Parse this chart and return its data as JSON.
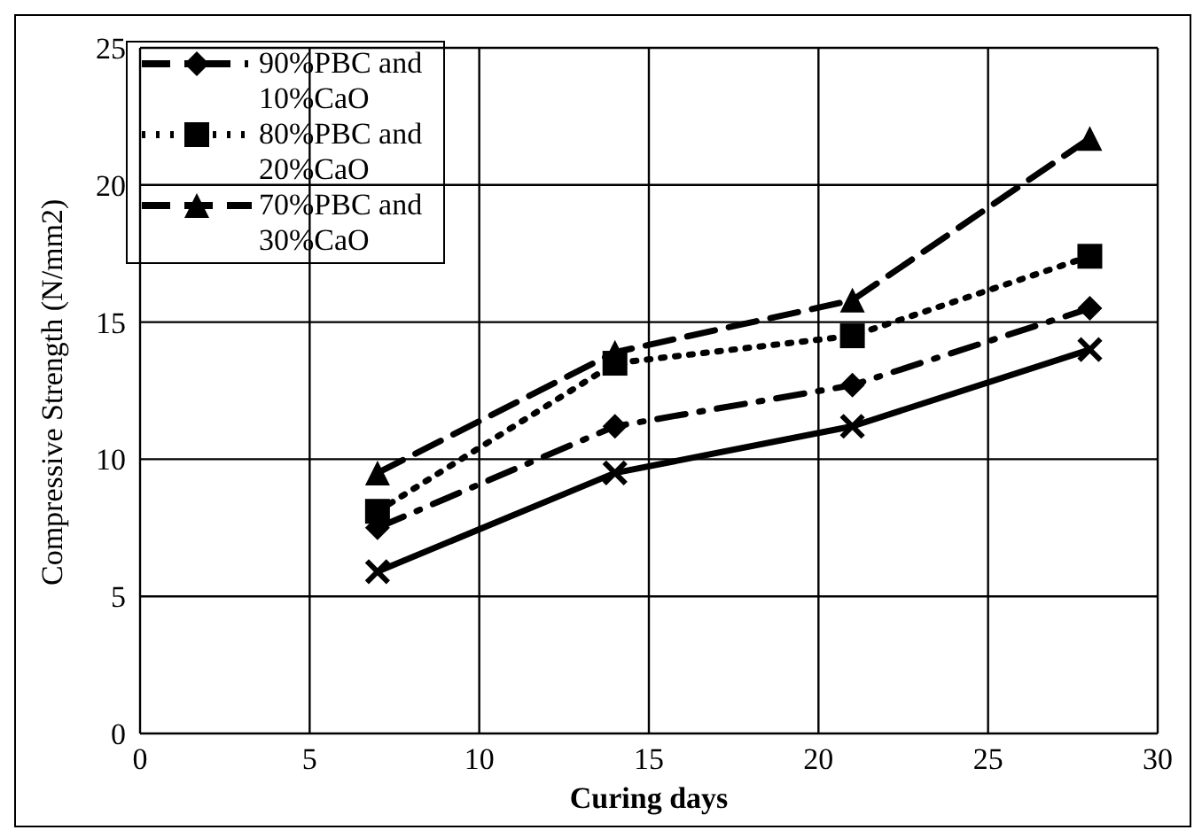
{
  "chart_data": {
    "type": "line",
    "xlabel": "Curing days",
    "ylabel": "Compressive Strength (N/mm2)",
    "x": [
      7,
      14,
      21,
      28
    ],
    "series": [
      {
        "name": "90%PBC and 10%CaO",
        "color": "#000000",
        "values": [
          7.5,
          11.2,
          12.7,
          15.5
        ],
        "marker": "diamond",
        "line_style": "dashdot"
      },
      {
        "name": "80%PBC and 20%CaO",
        "color": "#000000",
        "values": [
          8.1,
          13.5,
          14.5,
          17.4
        ],
        "marker": "square",
        "line_style": "dotted"
      },
      {
        "name": "70%PBC and 30%CaO",
        "color": "#000000",
        "values": [
          9.5,
          13.9,
          15.8,
          21.7
        ],
        "marker": "triangle",
        "line_style": "dashed"
      },
      {
        "color": "#000000",
        "values": [
          5.9,
          9.5,
          11.2,
          14.0
        ],
        "marker": "cross",
        "line_style": "solid"
      }
    ],
    "xlim": [
      0,
      30
    ],
    "xticks": [
      0,
      5,
      10,
      15,
      20,
      25,
      30
    ],
    "ylim": [
      0,
      25
    ],
    "yticks": [
      0,
      5,
      10,
      15,
      20,
      25
    ],
    "grid": true,
    "legend": "top left"
  }
}
